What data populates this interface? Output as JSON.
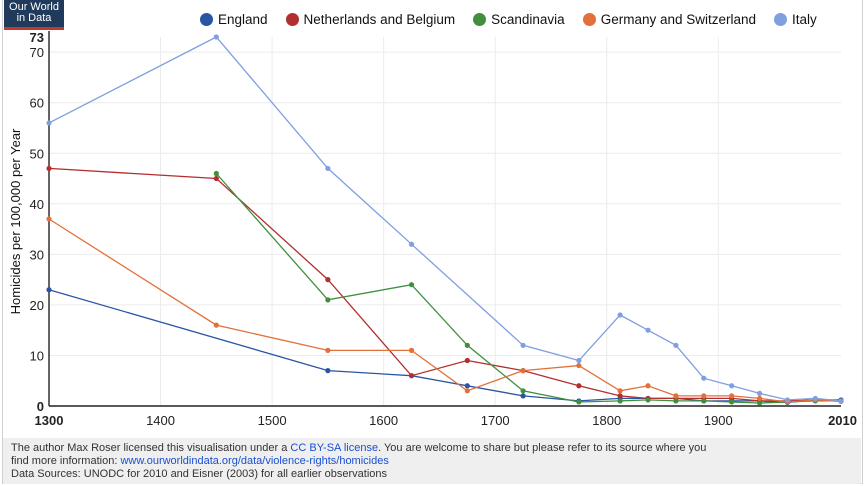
{
  "logo": {
    "line1": "Our World",
    "line2": "in Data"
  },
  "footer": {
    "line1_pre": "The author Max Roser licensed this visualisation under a ",
    "line1_link": "CC BY-SA license",
    "line1_post": ". You are welcome to share but please refer to its source where you",
    "line2_pre": "find more information: ",
    "line2_link": "www.ourworldindata.org/data/violence-rights/homicides",
    "line3": "Data Sources: UNODC for 2010 and Eisner (2003) for all earlier observations"
  },
  "chart_data": {
    "type": "line",
    "title": "",
    "xlabel": "",
    "ylabel": "Homicides per 100,000 per Year",
    "xlim": [
      1300,
      2010
    ],
    "ylim": [
      0,
      73
    ],
    "x_ticks": [
      "1300",
      "1400",
      "1500",
      "1600",
      "1700",
      "1800",
      "1900",
      "2010"
    ],
    "x_tick_values": [
      1300,
      1400,
      1500,
      1600,
      1700,
      1800,
      1900,
      2010
    ],
    "x_tick_bold": [
      true,
      false,
      false,
      false,
      false,
      false,
      false,
      true
    ],
    "y_ticks": [
      "0",
      "10",
      "20",
      "30",
      "40",
      "50",
      "60",
      "70",
      "73"
    ],
    "y_tick_values": [
      0,
      10,
      20,
      30,
      40,
      50,
      60,
      70,
      73
    ],
    "y_tick_bold": [
      true,
      false,
      false,
      false,
      false,
      false,
      false,
      false,
      true
    ],
    "grid": true,
    "legend_position": "top",
    "series": [
      {
        "name": "England",
        "color": "#2a55a5",
        "points": [
          [
            1300,
            23
          ],
          [
            1550,
            7
          ],
          [
            1625,
            6
          ],
          [
            1675,
            4
          ],
          [
            1725,
            2
          ],
          [
            1775,
            1
          ],
          [
            1812,
            1.5
          ],
          [
            1837,
            1.5
          ],
          [
            1862,
            1.5
          ],
          [
            1887,
            1
          ],
          [
            1912,
            1
          ],
          [
            1937,
            1
          ],
          [
            1962,
            0.7
          ],
          [
            1987,
            1.2
          ],
          [
            2010,
            1.2
          ]
        ]
      },
      {
        "name": "Netherlands and Belgium",
        "color": "#b32e2e",
        "points": [
          [
            1300,
            47
          ],
          [
            1450,
            45
          ],
          [
            1550,
            25
          ],
          [
            1625,
            6
          ],
          [
            1675,
            9
          ],
          [
            1725,
            7
          ],
          [
            1775,
            4
          ],
          [
            1812,
            2
          ],
          [
            1837,
            1.5
          ],
          [
            1862,
            1.5
          ],
          [
            1887,
            1.5
          ],
          [
            1912,
            1.5
          ],
          [
            1937,
            1
          ],
          [
            1962,
            1
          ],
          [
            1987,
            1.2
          ],
          [
            2010,
            1
          ]
        ]
      },
      {
        "name": "Scandinavia",
        "color": "#3f8f3f",
        "points": [
          [
            1450,
            46
          ],
          [
            1550,
            21
          ],
          [
            1625,
            24
          ],
          [
            1675,
            12
          ],
          [
            1725,
            3
          ],
          [
            1775,
            0.8
          ],
          [
            1812,
            1
          ],
          [
            1837,
            1.2
          ],
          [
            1862,
            1
          ],
          [
            1887,
            1
          ],
          [
            1912,
            0.8
          ],
          [
            1937,
            0.6
          ],
          [
            1962,
            0.8
          ],
          [
            1987,
            1
          ],
          [
            2010,
            1
          ]
        ]
      },
      {
        "name": "Germany and Switzerland",
        "color": "#e2703a",
        "points": [
          [
            1300,
            37
          ],
          [
            1450,
            16
          ],
          [
            1550,
            11
          ],
          [
            1625,
            11
          ],
          [
            1675,
            3
          ],
          [
            1725,
            7
          ],
          [
            1775,
            8
          ],
          [
            1812,
            3
          ],
          [
            1837,
            4
          ],
          [
            1862,
            2
          ],
          [
            1887,
            2
          ],
          [
            1912,
            2
          ],
          [
            1937,
            1.5
          ],
          [
            1962,
            0.8
          ],
          [
            1987,
            1.2
          ],
          [
            2010,
            0.9
          ]
        ]
      },
      {
        "name": "Italy",
        "color": "#7f9fdf",
        "points": [
          [
            1300,
            56
          ],
          [
            1450,
            73
          ],
          [
            1550,
            47
          ],
          [
            1625,
            32
          ],
          [
            1725,
            12
          ],
          [
            1775,
            9
          ],
          [
            1812,
            18
          ],
          [
            1837,
            15
          ],
          [
            1862,
            12
          ],
          [
            1887,
            5.5
          ],
          [
            1912,
            4
          ],
          [
            1937,
            2.5
          ],
          [
            1962,
            1.2
          ],
          [
            1987,
            1.5
          ],
          [
            2010,
            1
          ]
        ]
      }
    ]
  }
}
